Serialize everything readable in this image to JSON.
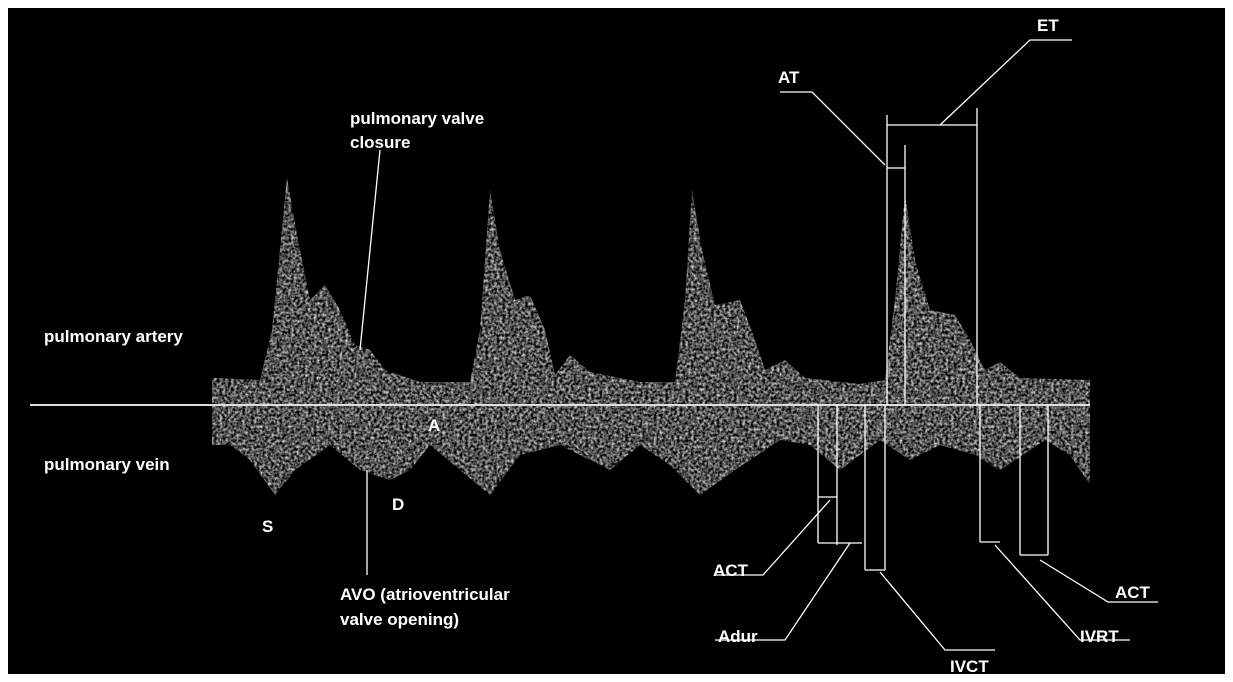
{
  "labels": {
    "valve_closure_1": "pulmonary valve",
    "valve_closure_2": "closure",
    "artery": "pulmonary artery",
    "vein": "pulmonary vein",
    "s": "S",
    "d": "D",
    "a": "A",
    "avo_1": "AVO (atrioventricular",
    "avo_2": "valve opening)",
    "at": "AT",
    "et": "ET",
    "act_left": "ACT",
    "adur": "Adur",
    "ivct": "IVCT",
    "ivrt": "IVRT",
    "act_right": "ACT"
  }
}
